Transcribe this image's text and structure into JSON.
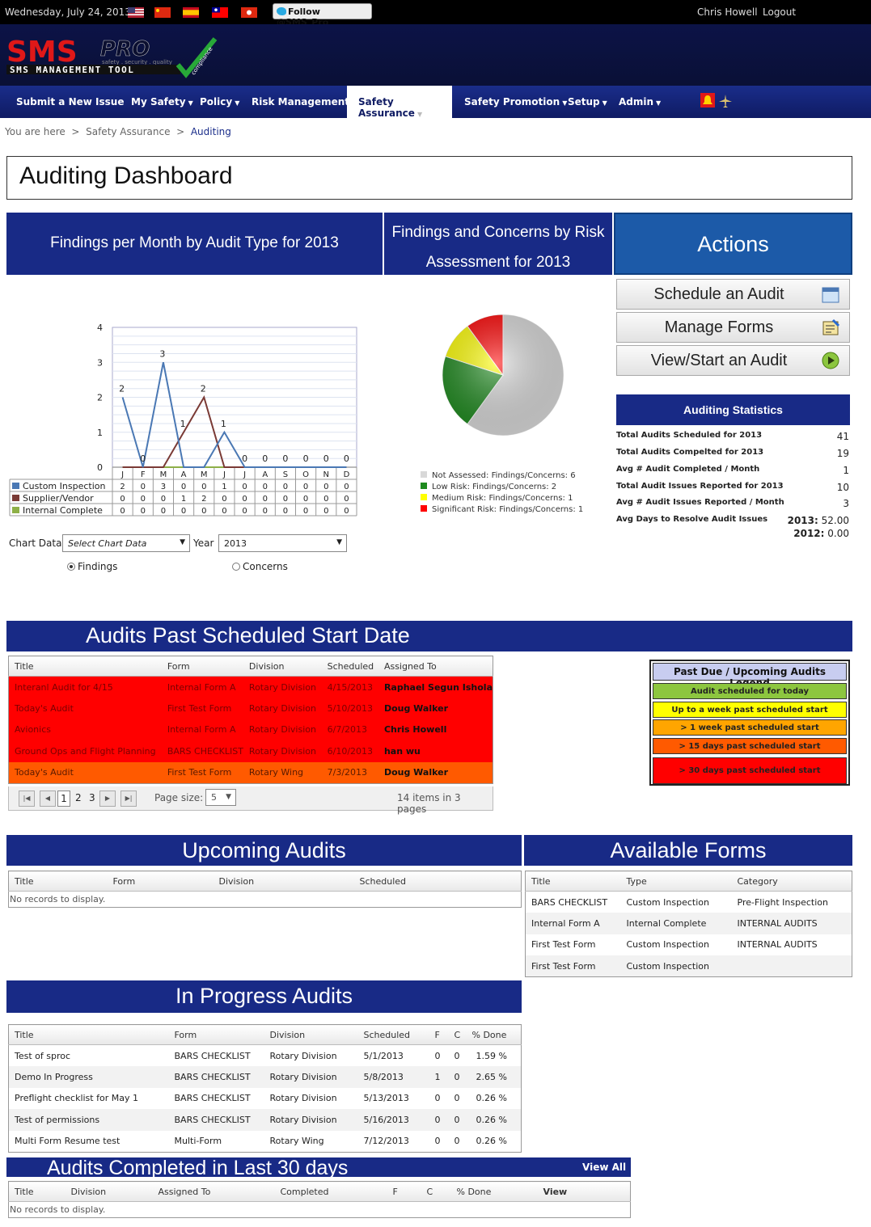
{
  "topbar": {
    "date": "Wednesday, July 24, 2013",
    "follow": "Follow @SMS_Pro",
    "user": "Chris Howell",
    "logout": "Logout"
  },
  "logo": {
    "main": "SMS",
    "pro": "PRO",
    "sub": "SMS MANAGEMENT TOOL",
    "tag": "safety . security . quality",
    "badge": "compliance"
  },
  "nav": [
    "Submit a New Issue",
    "My Safety",
    "Policy",
    "Risk Management",
    "Safety Assurance",
    "Safety Promotion",
    "Setup",
    "Admin"
  ],
  "breadcrumb": {
    "root": "You are here",
    "sep": ">",
    "section": "Safety Assurance",
    "current": "Auditing"
  },
  "page_title": "Auditing Dashboard",
  "heads": {
    "findings": "Findings per Month by Audit Type for 2013",
    "risk": "Findings and Concerns by Risk Assessment for 2013",
    "actions": "Actions"
  },
  "actions": {
    "schedule": "Schedule an Audit",
    "manage": "Manage Forms",
    "view": "View/Start an Audit"
  },
  "stats": {
    "title": "Auditing Statistics",
    "rows": [
      {
        "label": "Total Audits Scheduled for 2013",
        "value": "41"
      },
      {
        "label": "Total Audits Compelted for 2013",
        "value": "19"
      },
      {
        "label": "Avg # Audit Completed / Month",
        "value": "1"
      },
      {
        "label": "Total Audit Issues Reported for 2013",
        "value": "10"
      },
      {
        "label": "Avg # Audit Issues Reported / Month",
        "value": "3"
      },
      {
        "label": "Avg Days to Resolve Audit Issues",
        "value": ""
      }
    ],
    "resolve_2013_label": "2013:",
    "resolve_2013": "52.00",
    "resolve_2012_label": "2012:",
    "resolve_2012": "0.00"
  },
  "chart_data": [
    {
      "type": "line",
      "title": "Findings per Month by Audit Type for 2013",
      "categories": [
        "J",
        "F",
        "M",
        "A",
        "M",
        "J",
        "J",
        "A",
        "S",
        "O",
        "N",
        "D"
      ],
      "ylim": [
        0,
        4
      ],
      "yticks": [
        "0",
        "1",
        "2",
        "3",
        "4"
      ],
      "series": [
        {
          "name": "Custom Inspection",
          "color": "#4a78b4",
          "values": [
            2,
            0,
            3,
            0,
            0,
            1,
            0,
            0,
            0,
            0,
            0,
            0
          ]
        },
        {
          "name": "Supplier/Vendor",
          "color": "#7a3a35",
          "values": [
            0,
            0,
            0,
            1,
            2,
            0,
            0,
            0,
            0,
            0,
            0,
            0
          ]
        },
        {
          "name": "Internal Complete",
          "color": "#8eb047",
          "values": [
            0,
            0,
            0,
            0,
            0,
            0,
            0,
            0,
            0,
            0,
            0,
            0
          ]
        }
      ]
    },
    {
      "type": "pie",
      "title": "Findings and Concerns by Risk Assessment for 2013",
      "slices": [
        {
          "name": "Not Assessed",
          "label": "Not Assessed:  Findings/Concerns: 6",
          "value": 6,
          "color": "#d8d8d8"
        },
        {
          "name": "Low Risk",
          "label": "Low Risk:  Findings/Concerns: 2",
          "value": 2,
          "color": "#1e8a1e"
        },
        {
          "name": "Medium Risk",
          "label": "Medium Risk:  Findings/Concerns: 1",
          "value": 1,
          "color": "#ffff00"
        },
        {
          "name": "Significant Risk",
          "label": "Significant Risk:  Findings/Concerns: 1",
          "value": 1,
          "color": "#ff0000"
        }
      ]
    }
  ],
  "chart_controls": {
    "chart_data_label": "Chart Data",
    "chart_data_value": "Select Chart Data",
    "year_label": "Year",
    "year_value": "2013",
    "opt_findings": "Findings",
    "opt_concerns": "Concerns"
  },
  "past": {
    "title": "Audits Past Scheduled Start Date",
    "cols": [
      "Title",
      "Form",
      "Division",
      "Scheduled",
      "Assigned To"
    ],
    "rows": [
      [
        "Interanl Audit for 4/15",
        "Internal Form A",
        "Rotary Division",
        "4/15/2013",
        "Raphael Segun Ishola"
      ],
      [
        "Today's Audit",
        "First Test Form",
        "Rotary Division",
        "5/10/2013",
        "Doug Walker"
      ],
      [
        "Avionics",
        "Internal Form A",
        "Rotary Division",
        "6/7/2013",
        "Chris Howell"
      ],
      [
        "Ground Ops and Flight Planning",
        "BARS CHECKLIST",
        "Rotary Division",
        "6/10/2013",
        "han wu"
      ],
      [
        "Today's Audit",
        "First Test Form",
        "Rotary Wing",
        "7/3/2013",
        "Doug Walker"
      ]
    ],
    "pages": [
      "1",
      "2",
      "3"
    ],
    "page_size_label": "Page size:",
    "page_size": "5",
    "summary": "14 items in 3 pages"
  },
  "legend": {
    "title": "Past Due / Upcoming Audits Legend",
    "items": [
      {
        "label": "Audit scheduled for today",
        "color": "#8dc63f"
      },
      {
        "label": "Up to a week past scheduled start",
        "color": "#ffff00"
      },
      {
        "label": "> 1 week past scheduled start",
        "color": "#ffa500"
      },
      {
        "label": "> 15 days past scheduled start",
        "color": "#ff5a00"
      },
      {
        "label": "> 30 days past scheduled start",
        "color": "#ff0000"
      }
    ]
  },
  "upcoming": {
    "title": "Upcoming Audits",
    "cols": [
      "Title",
      "Form",
      "Division",
      "Scheduled"
    ],
    "empty": "No records to display."
  },
  "forms": {
    "title": "Available Forms",
    "cols": [
      "Title",
      "Type",
      "Category"
    ],
    "rows": [
      [
        "BARS CHECKLIST",
        "Custom Inspection",
        "Pre-Flight Inspection"
      ],
      [
        "Internal Form A",
        "Internal Complete",
        "INTERNAL AUDITS"
      ],
      [
        "First Test Form",
        "Custom Inspection",
        "INTERNAL AUDITS"
      ],
      [
        "First Test Form",
        "Custom Inspection",
        ""
      ]
    ]
  },
  "inprogress": {
    "title": "In Progress Audits",
    "cols": [
      "Title",
      "Form",
      "Division",
      "Scheduled",
      "F",
      "C",
      "% Done"
    ],
    "rows": [
      [
        "Test of sproc",
        "BARS CHECKLIST",
        "Rotary Division",
        "5/1/2013",
        "0",
        "0",
        "1.59 %"
      ],
      [
        "Demo In Progress",
        "BARS CHECKLIST",
        "Rotary Division",
        "5/8/2013",
        "1",
        "0",
        "2.65 %"
      ],
      [
        "Preflight checklist for May 1",
        "BARS CHECKLIST",
        "Rotary Division",
        "5/13/2013",
        "0",
        "0",
        "0.26 %"
      ],
      [
        "Test of permissions",
        "BARS CHECKLIST",
        "Rotary Division",
        "5/16/2013",
        "0",
        "0",
        "0.26 %"
      ],
      [
        "Multi Form Resume test",
        "Multi-Form",
        "Rotary Wing",
        "7/12/2013",
        "0",
        "0",
        "0.26 %"
      ]
    ]
  },
  "completed": {
    "title": "Audits Completed in Last 30 days",
    "view_all": "View All",
    "cols": [
      "Title",
      "Division",
      "Assigned To",
      "Completed",
      "F",
      "C",
      "% Done",
      "View"
    ],
    "empty": "No records to display."
  }
}
